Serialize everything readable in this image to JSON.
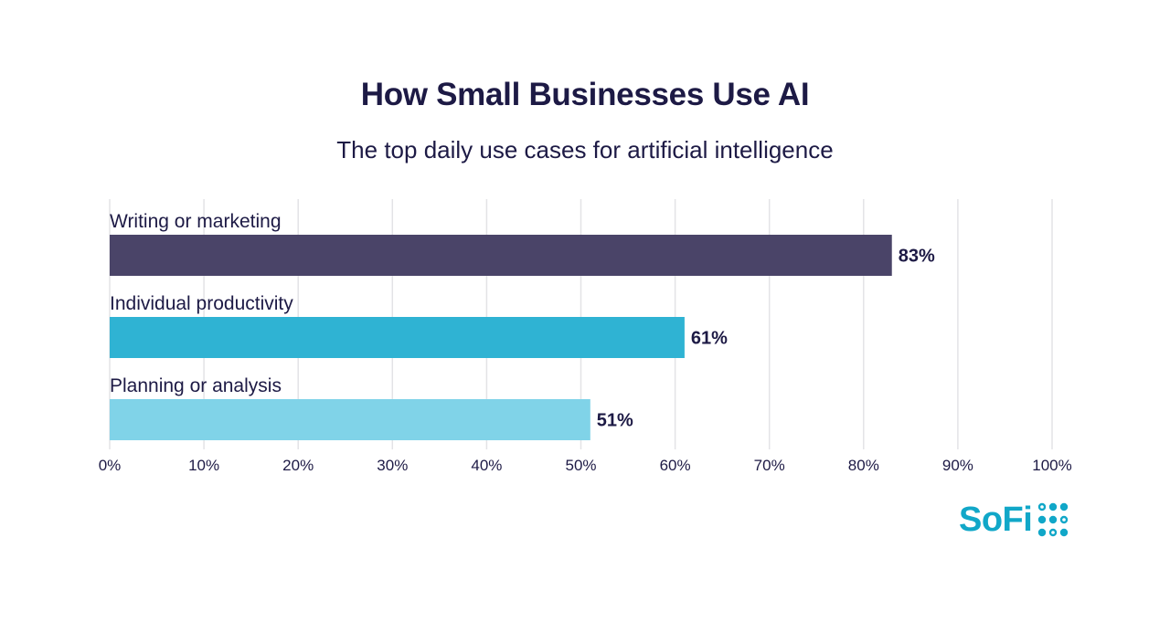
{
  "title": "How Small Businesses Use AI",
  "subtitle": "The top daily use cases for artificial intelligence",
  "logo": {
    "text": "SoFi",
    "icon": "sofi-dots-icon",
    "color": "#11a7c8"
  },
  "chart_data": {
    "type": "bar",
    "orientation": "horizontal",
    "categories": [
      "Writing or marketing",
      "Individual productivity",
      "Planning or analysis"
    ],
    "values": [
      83,
      61,
      51
    ],
    "value_labels": [
      "83%",
      "61%",
      "51%"
    ],
    "colors": [
      "#4a4468",
      "#2fb3d3",
      "#80d3e8"
    ],
    "xlim": [
      0,
      100
    ],
    "xticks": [
      "0%",
      "10%",
      "20%",
      "30%",
      "40%",
      "50%",
      "60%",
      "70%",
      "80%",
      "90%",
      "100%"
    ],
    "grid": true,
    "title": "How Small Businesses Use AI",
    "subtitle": "The top daily use cases for artificial intelligence"
  }
}
